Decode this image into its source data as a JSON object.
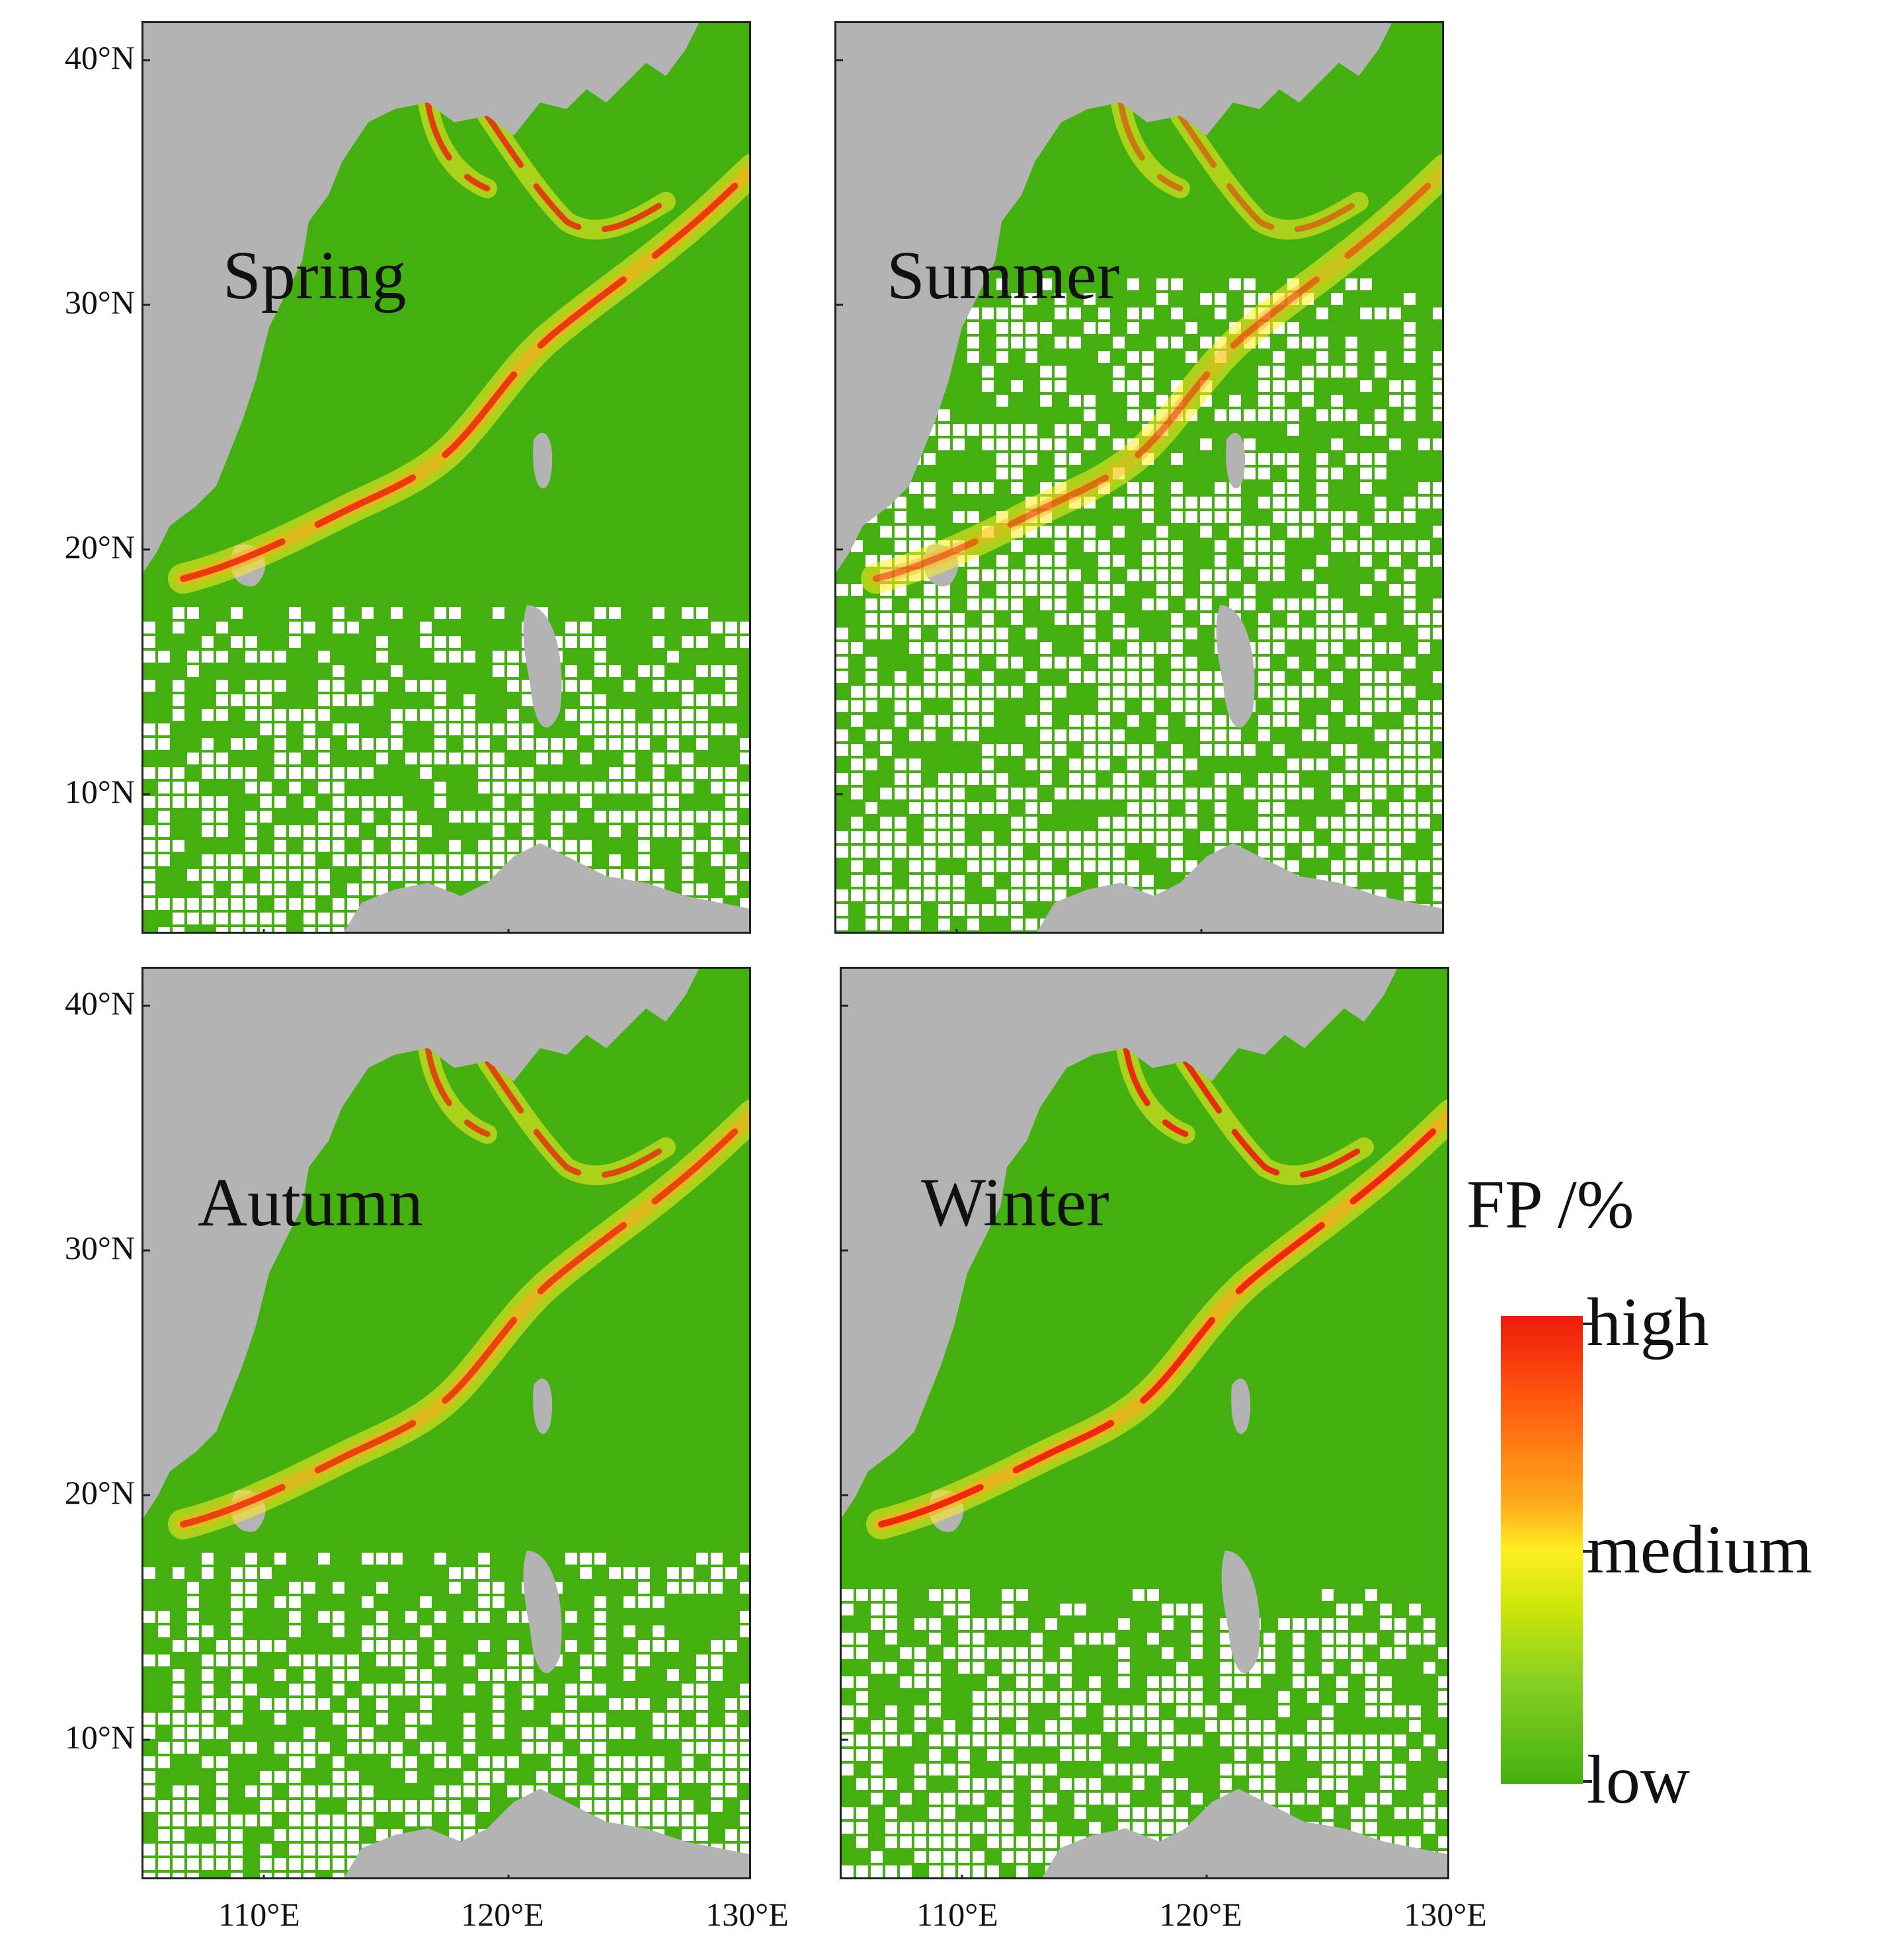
{
  "panels": [
    {
      "season": "Spring"
    },
    {
      "season": "Summer"
    },
    {
      "season": "Autumn"
    },
    {
      "season": "Winter"
    }
  ],
  "axes": {
    "lat_labels": [
      "40°N",
      "30°N",
      "20°N",
      "10°N"
    ],
    "lon_labels": [
      "110°E",
      "120°E",
      "130°E"
    ],
    "lat_range": [
      4,
      41.5
    ],
    "lon_range": [
      105,
      130
    ]
  },
  "legend": {
    "title": "FP /%",
    "labels": [
      "high",
      "medium",
      "low"
    ],
    "colors": {
      "high": "#ee1a0a",
      "medium": "#ffee22",
      "low": "#44b010"
    }
  },
  "colors": {
    "land": "#b3b3b3",
    "no_data": "#ffffff"
  }
}
